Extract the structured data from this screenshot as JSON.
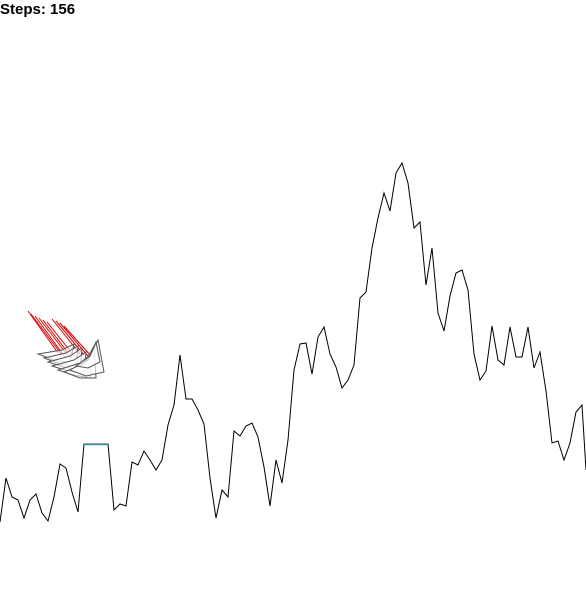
{
  "hud": {
    "steps_text": "Steps: 156"
  },
  "colors": {
    "background": "#ffffff",
    "terrain": "#000000",
    "landing_pad": "#3a8fb5",
    "lander_outline": "#555555",
    "lander_fill": "#ffffff",
    "thrust_flame": "#dd0000"
  },
  "scene": {
    "terrain_icon": "mountain-ridge-line",
    "landing_pad_icon": "flat-landing-pad",
    "lander_icon": "lander-ghost-trail",
    "flame_icon": "thruster-flame-lines"
  }
}
